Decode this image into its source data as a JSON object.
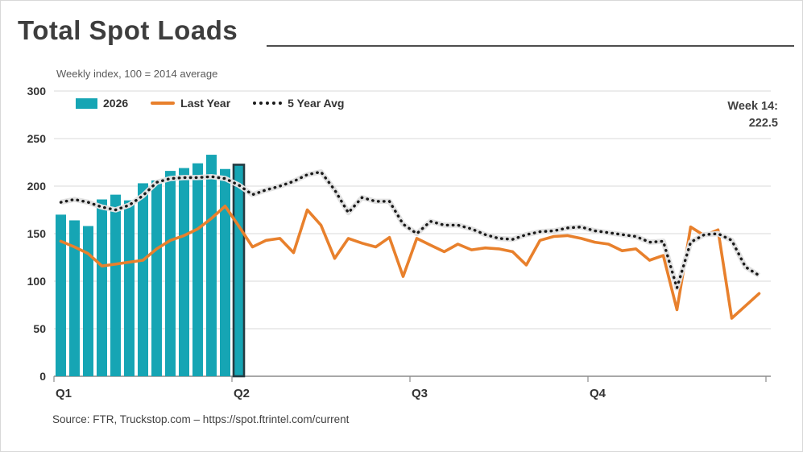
{
  "title": "Total Spot Loads",
  "subtitle": "Weekly index, 100 = 2014 average",
  "legend": [
    {
      "label": "2026",
      "swatch": "bar"
    },
    {
      "label": "Last Year",
      "swatch": "line"
    },
    {
      "label": "5 Year Avg",
      "swatch": "dotted"
    }
  ],
  "annotation": {
    "line1": "Week 14:",
    "line2": "222.5"
  },
  "source": "Source: FTR, Truckstop.com – https://spot.ftrintel.com/current",
  "colors": {
    "bar": "#16A5B4",
    "bar_highlight_border": "#253B42",
    "last_year_line": "#E8802C",
    "five_year_avg_dots": "#1A1A1A",
    "dot_halo": "#E2E2E2",
    "gridline": "#D9D9D9",
    "axis_line": "#8C8C8C",
    "tick_label": "#333333"
  },
  "chart_data": {
    "type": "combo",
    "title": "Total Spot Loads",
    "subtitle": "Weekly index, 100 = 2014 average",
    "x_axis": {
      "labels": [
        "Q1",
        "Q2",
        "Q3",
        "Q4"
      ],
      "weeks": 52,
      "weeks_per_quarter": 13
    },
    "y_axis": {
      "min": 0,
      "max": 300,
      "step": 50,
      "tick_labels": [
        "300",
        "250",
        "200",
        "150",
        "100",
        "50",
        "0"
      ]
    },
    "annotation": {
      "week": 14,
      "value": 222.5,
      "text": "Week 14: 222.5"
    },
    "series": [
      {
        "name": "2026",
        "type": "bar",
        "color": "#16A5B4",
        "weeks": [
          1,
          2,
          3,
          4,
          5,
          6,
          7,
          8,
          9,
          10,
          11,
          12,
          13,
          14
        ],
        "values": [
          170,
          164,
          158,
          186,
          191,
          185,
          203,
          206,
          216,
          219,
          224,
          233,
          218,
          222.5
        ],
        "highlight_week": 14
      },
      {
        "name": "Last Year",
        "type": "line",
        "color": "#E8802C",
        "values": [
          142,
          136,
          129,
          116,
          118,
          120,
          122,
          134,
          143,
          148,
          155,
          166,
          179,
          158,
          136,
          143,
          145,
          130,
          175,
          159,
          124,
          145,
          140,
          136,
          146,
          105,
          145,
          138,
          131,
          139,
          133,
          135,
          134,
          131,
          117,
          143,
          147,
          148,
          145,
          141,
          139,
          132,
          134,
          122,
          127,
          70,
          157,
          148,
          154,
          61,
          74,
          87
        ]
      },
      {
        "name": "5 Year Avg",
        "type": "line",
        "style": "dotted",
        "color": "#1A1A1A",
        "values": [
          183,
          186,
          183,
          178,
          175,
          180,
          190,
          204,
          208,
          209,
          209,
          210,
          208,
          201,
          191,
          196,
          200,
          205,
          212,
          215,
          196,
          172,
          188,
          184,
          184,
          160,
          150,
          163,
          159,
          159,
          155,
          149,
          145,
          144,
          149,
          152,
          153,
          156,
          157,
          153,
          151,
          149,
          147,
          141,
          142,
          93,
          141,
          149,
          150,
          143,
          115,
          106
        ]
      }
    ]
  }
}
